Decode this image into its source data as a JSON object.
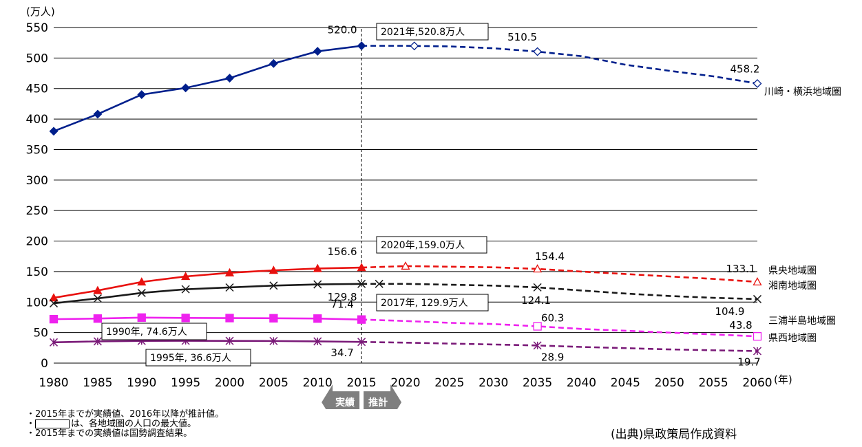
{
  "chart_data": {
    "type": "line",
    "title": "",
    "ylabel": "(万人)",
    "xlabel": "(年)",
    "ylim": [
      0,
      550
    ],
    "yticks": [
      "0",
      "50",
      "100",
      "150",
      "200",
      "250",
      "300",
      "350",
      "400",
      "450",
      "500",
      "550"
    ],
    "categories": [
      "1980",
      "1985",
      "1990",
      "1995",
      "2000",
      "2005",
      "2010",
      "2015",
      "2020",
      "2025",
      "2030",
      "2035",
      "2040",
      "2045",
      "2050",
      "2055",
      "2060"
    ],
    "divider_year": "2015",
    "actual_label": "実績",
    "forecast_label": "推計",
    "series": [
      {
        "name": "川崎・横浜地域圏",
        "color": "#001f8c",
        "values": [
          380,
          408,
          440,
          451,
          467,
          491,
          511,
          520,
          520,
          519,
          516,
          510.5,
          503,
          489,
          479,
          470,
          458.2
        ],
        "actual_marker": "diamond-filled",
        "forecast_marker": "diamond-open",
        "forecast_points": [
          "2021",
          "2035",
          "2060"
        ]
      },
      {
        "name": "県央地域圏",
        "color": "#e8110e",
        "values": [
          107,
          119,
          133,
          142,
          148,
          152,
          155,
          156.6,
          159,
          158,
          157,
          154.4,
          150,
          146,
          142,
          138,
          133.1
        ],
        "actual_marker": "triangle-filled",
        "forecast_marker": "triangle-open",
        "forecast_points": [
          "2020",
          "2035",
          "2060"
        ]
      },
      {
        "name": "湘南地域圏",
        "color": "#1a1a1a",
        "values": [
          98,
          106,
          115,
          121,
          124,
          127,
          129,
          129.8,
          129.9,
          128.5,
          127,
          124.1,
          119,
          114,
          110,
          107,
          104.9
        ],
        "actual_marker": "x",
        "forecast_marker": "x",
        "forecast_points": [
          "2017",
          "2035",
          "2060"
        ]
      },
      {
        "name": "三浦半島地域圏",
        "color": "#ee22ee",
        "values": [
          72,
          73,
          74.6,
          74,
          73.8,
          73.5,
          73,
          71.4,
          69,
          66,
          64,
          60.3,
          56,
          53,
          50,
          47,
          43.8
        ],
        "actual_marker": "square-filled",
        "forecast_marker": "square-open",
        "forecast_points": [
          "2035",
          "2060"
        ]
      },
      {
        "name": "県西地域圏",
        "color": "#7a1a78",
        "values": [
          34,
          35.6,
          36.4,
          36.6,
          36.4,
          36.2,
          35.6,
          34.7,
          33.5,
          32,
          30.5,
          28.9,
          26.5,
          24.5,
          22.5,
          21,
          19.7
        ],
        "actual_marker": "asterisk",
        "forecast_marker": "asterisk",
        "forecast_points": [
          "2035",
          "2060"
        ]
      }
    ],
    "value_labels": [
      {
        "series": 0,
        "year": "2015",
        "text": "520.0"
      },
      {
        "series": 0,
        "year": "2035",
        "text": "510.5"
      },
      {
        "series": 0,
        "year": "2060",
        "text": "458.2"
      },
      {
        "series": 1,
        "year": "2015",
        "text": "156.6"
      },
      {
        "series": 1,
        "year": "2035",
        "text": "154.4"
      },
      {
        "series": 1,
        "year": "2060",
        "text": "133.1"
      },
      {
        "series": 2,
        "year": "2015",
        "text": "129.8"
      },
      {
        "series": 2,
        "year": "2035",
        "text": "124.1"
      },
      {
        "series": 2,
        "year": "2060",
        "text": "104.9"
      },
      {
        "series": 3,
        "year": "2015",
        "text": "71.4"
      },
      {
        "series": 3,
        "year": "2035",
        "text": "60.3"
      },
      {
        "series": 3,
        "year": "2060",
        "text": "43.8"
      },
      {
        "series": 4,
        "year": "2015",
        "text": "34.7"
      },
      {
        "series": 4,
        "year": "2035",
        "text": "28.9"
      },
      {
        "series": 4,
        "year": "2060",
        "text": "19.7"
      }
    ],
    "max_callouts": [
      {
        "text": "2021年,520.8万人"
      },
      {
        "text": "2020年,159.0万人"
      },
      {
        "text": "2017年, 129.9万人"
      },
      {
        "text": "1990年, 74.6万人"
      },
      {
        "text": "1995年, 36.6万人"
      }
    ]
  },
  "notes": [
    "・2015年までが実績値、2016年以降が推計値。",
    "は、各地域圏の人口の最大値。",
    "・2015年までの実績値は国勢調査結果。"
  ],
  "notes_bullet": "・",
  "source": "(出典)県政策局作成資料"
}
